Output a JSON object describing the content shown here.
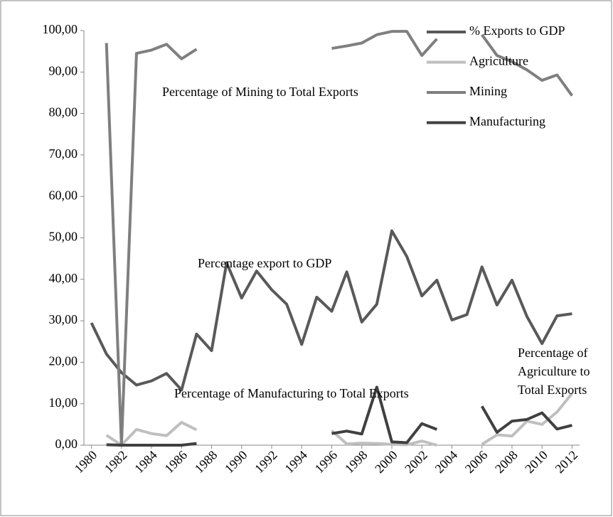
{
  "chart_data": {
    "type": "line",
    "x": [
      1980,
      1981,
      1982,
      1983,
      1984,
      1985,
      1986,
      1987,
      1988,
      1989,
      1990,
      1991,
      1992,
      1993,
      1994,
      1995,
      1996,
      1997,
      1998,
      1999,
      2000,
      2001,
      2002,
      2003,
      2004,
      2005,
      2006,
      2007,
      2008,
      2009,
      2010,
      2011,
      2012
    ],
    "xlim": [
      1979.5,
      2012.5
    ],
    "xticks": [
      1980,
      1982,
      1984,
      1986,
      1988,
      1990,
      1992,
      1994,
      1996,
      1998,
      2000,
      2002,
      2004,
      2006,
      2008,
      2010,
      2012
    ],
    "ylim": [
      0,
      100
    ],
    "yticks": [
      {
        "value": 0,
        "label": "0,00"
      },
      {
        "value": 10,
        "label": "10,00"
      },
      {
        "value": 20,
        "label": "20,00"
      },
      {
        "value": 30,
        "label": "30,00"
      },
      {
        "value": 40,
        "label": "40,00"
      },
      {
        "value": 50,
        "label": "50,00"
      },
      {
        "value": 60,
        "label": "60,00"
      },
      {
        "value": 70,
        "label": "70,00"
      },
      {
        "value": 80,
        "label": "80,00"
      },
      {
        "value": 90,
        "label": "90,00"
      },
      {
        "value": 100,
        "label": "100,00"
      }
    ],
    "legend": "upper right",
    "series": [
      {
        "name": "% Exports to GDP",
        "color": "#595959",
        "values": [
          29.5,
          22,
          17.5,
          14.5,
          15.5,
          17.3,
          13.3,
          26.8,
          22.8,
          44,
          35.5,
          42,
          37.5,
          34,
          24.3,
          35.7,
          32.3,
          41.8,
          29.7,
          34,
          51.7,
          45.5,
          36,
          39.8,
          30.2,
          31.5,
          43,
          33.8,
          39.8,
          31,
          24.5,
          31.2,
          31.7
        ]
      },
      {
        "name": "Agriculture",
        "color": "#bfbfbf",
        "values": [
          null,
          2.4,
          0,
          3.8,
          2.8,
          2.3,
          5.5,
          3.7,
          null,
          null,
          null,
          null,
          null,
          null,
          null,
          null,
          3.5,
          0.3,
          0.5,
          0.4,
          0.2,
          0.1,
          1,
          0,
          null,
          null,
          0.2,
          2.5,
          2.2,
          5.8,
          5,
          8,
          12.5
        ]
      },
      {
        "name": "Mining",
        "color": "#7f7f7f",
        "values": [
          null,
          97,
          0,
          94.5,
          95.3,
          96.7,
          93.2,
          95.5,
          null,
          null,
          null,
          null,
          null,
          null,
          null,
          null,
          95.7,
          96.3,
          97,
          99,
          99.8,
          99.8,
          94,
          98,
          null,
          null,
          99,
          94,
          92.5,
          90.5,
          88,
          89.3,
          84.3
        ]
      },
      {
        "name": "Manufacturing",
        "color": "#404040",
        "values": [
          null,
          0.1,
          0,
          0,
          0,
          0,
          0,
          0.4,
          null,
          null,
          null,
          null,
          null,
          null,
          null,
          null,
          2.8,
          3.4,
          2.7,
          14,
          0.8,
          0.6,
          5.2,
          3.8,
          null,
          null,
          9.4,
          3.1,
          5.8,
          6.2,
          7.8,
          3.9,
          4.8
        ]
      }
    ],
    "annotations": [
      "Percentage of Mining to Total Exports",
      "Percentage export to GDP",
      "Percentage of Manufacturing to Total Exports",
      [
        "Percentage of",
        "Agriculture to",
        "Total Exports"
      ]
    ]
  }
}
